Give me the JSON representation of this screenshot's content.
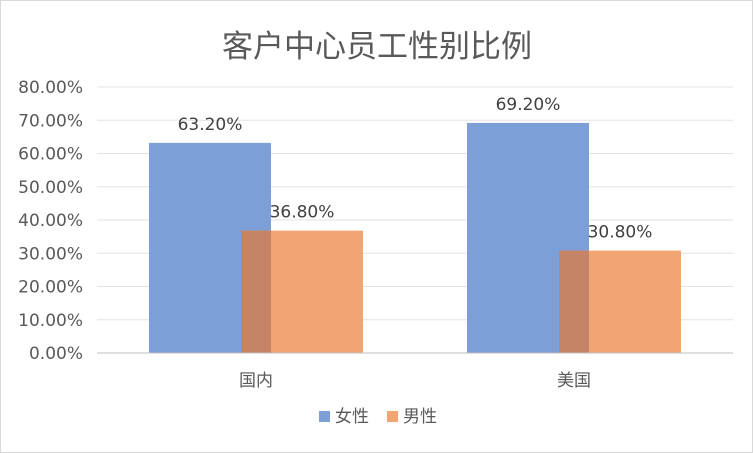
{
  "chart_data": {
    "type": "bar",
    "title": "客户中心员工性别比例",
    "categories": [
      "国内",
      "美国"
    ],
    "series": [
      {
        "name": "女性",
        "values": [
          0.632,
          0.692
        ],
        "labels": [
          "63.20%",
          "69.20%"
        ],
        "color": "#7b9fd6"
      },
      {
        "name": "男性",
        "values": [
          0.368,
          0.308
        ],
        "labels": [
          "36.80%",
          "30.80%"
        ],
        "color": "#f0a573"
      }
    ],
    "overlap_color": "#c48465",
    "ylim": [
      0,
      0.8
    ],
    "ytick_step": 0.1,
    "ytick_labels": [
      "0.00%",
      "10.00%",
      "20.00%",
      "30.00%",
      "40.00%",
      "50.00%",
      "60.00%",
      "70.00%",
      "80.00%"
    ],
    "grid": true,
    "legend_position": "bottom",
    "xlabel": "",
    "ylabel": ""
  }
}
